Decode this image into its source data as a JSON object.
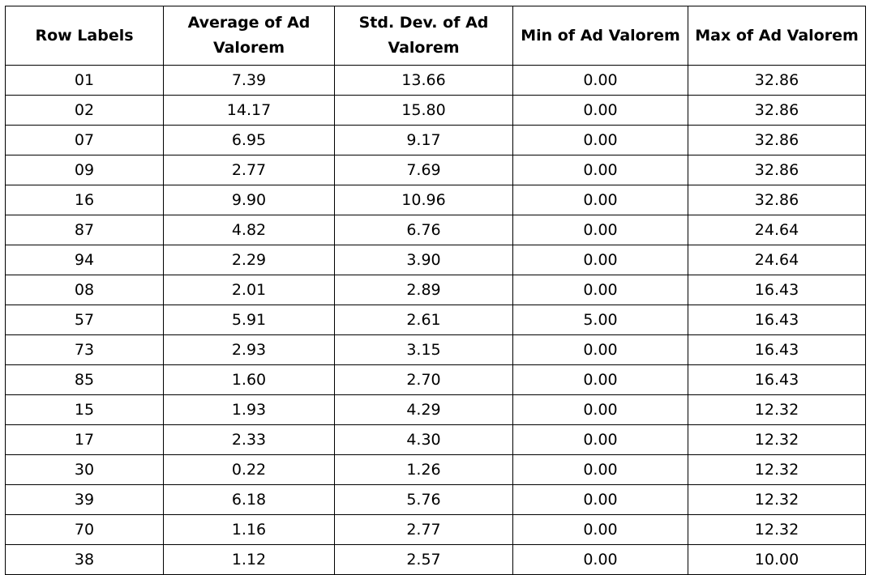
{
  "table": {
    "headers": [
      "Row Labels",
      "Average of Ad Valorem",
      "Std. Dev. of Ad Valorem",
      "Min of Ad Valorem",
      "Max of Ad Valorem"
    ],
    "rows": [
      [
        "01",
        "7.39",
        "13.66",
        "0.00",
        "32.86"
      ],
      [
        "02",
        "14.17",
        "15.80",
        "0.00",
        "32.86"
      ],
      [
        "07",
        "6.95",
        "9.17",
        "0.00",
        "32.86"
      ],
      [
        "09",
        "2.77",
        "7.69",
        "0.00",
        "32.86"
      ],
      [
        "16",
        "9.90",
        "10.96",
        "0.00",
        "32.86"
      ],
      [
        "87",
        "4.82",
        "6.76",
        "0.00",
        "24.64"
      ],
      [
        "94",
        "2.29",
        "3.90",
        "0.00",
        "24.64"
      ],
      [
        "08",
        "2.01",
        "2.89",
        "0.00",
        "16.43"
      ],
      [
        "57",
        "5.91",
        "2.61",
        "5.00",
        "16.43"
      ],
      [
        "73",
        "2.93",
        "3.15",
        "0.00",
        "16.43"
      ],
      [
        "85",
        "1.60",
        "2.70",
        "0.00",
        "16.43"
      ],
      [
        "15",
        "1.93",
        "4.29",
        "0.00",
        "12.32"
      ],
      [
        "17",
        "2.33",
        "4.30",
        "0.00",
        "12.32"
      ],
      [
        "30",
        "0.22",
        "1.26",
        "0.00",
        "12.32"
      ],
      [
        "39",
        "6.18",
        "5.76",
        "0.00",
        "12.32"
      ],
      [
        "70",
        "1.16",
        "2.77",
        "0.00",
        "12.32"
      ],
      [
        "38",
        "1.12",
        "2.57",
        "0.00",
        "10.00"
      ]
    ]
  }
}
